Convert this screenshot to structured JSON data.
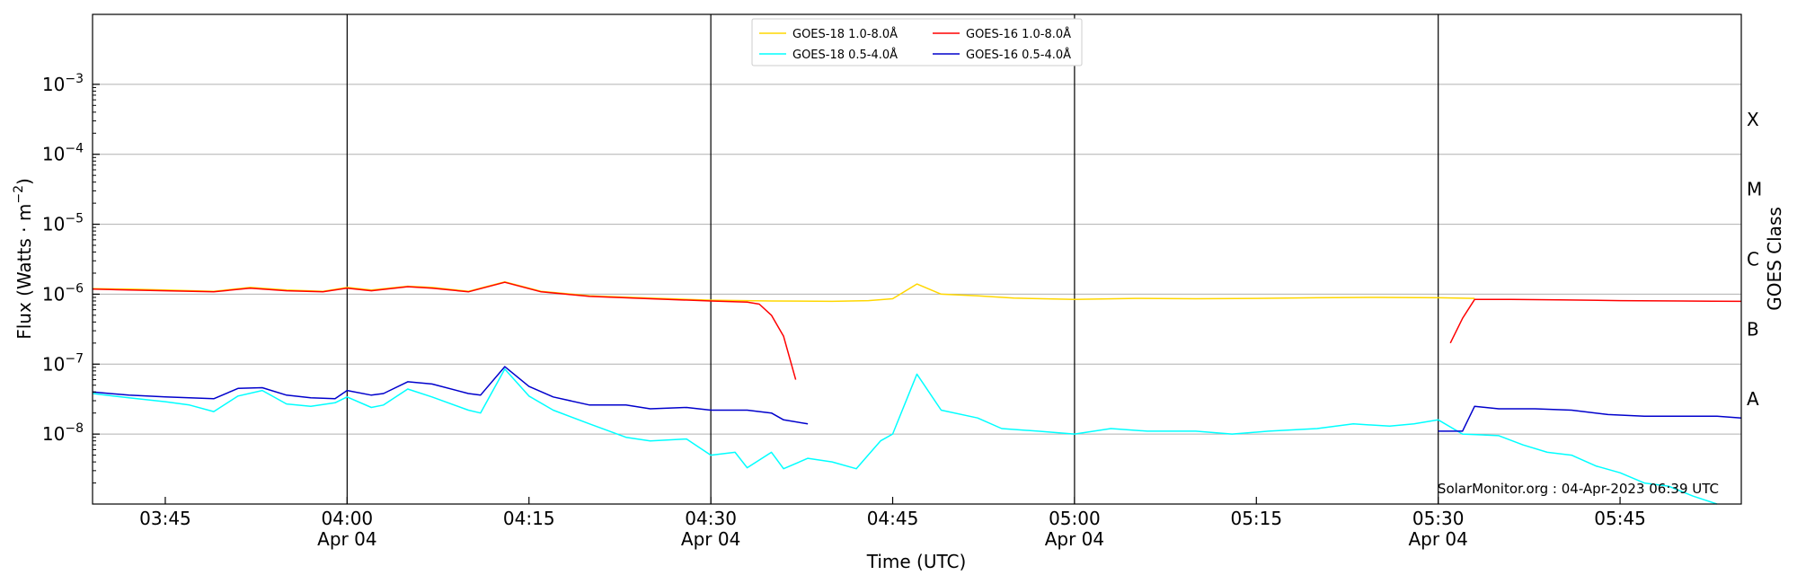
{
  "chart_data": {
    "type": "line",
    "ylabel": "Flux (Watts · m",
    "ylabel_sup": "−2",
    "ylabel_close": ")",
    "xlabel": "Time (UTC)",
    "right_label": "GOES Class",
    "y_scale": "log",
    "ylim": [
      1e-09,
      0.01
    ],
    "xlim_minutes": [
      "03:39",
      "05:55"
    ],
    "x_ticks": [
      {
        "t": "03:45",
        "label": "03:45",
        "sub": ""
      },
      {
        "t": "04:00",
        "label": "04:00",
        "sub": "Apr 04"
      },
      {
        "t": "04:15",
        "label": "04:15",
        "sub": ""
      },
      {
        "t": "04:30",
        "label": "04:30",
        "sub": "Apr 04"
      },
      {
        "t": "04:45",
        "label": "04:45",
        "sub": ""
      },
      {
        "t": "05:00",
        "label": "05:00",
        "sub": "Apr 04"
      },
      {
        "t": "05:15",
        "label": "05:15",
        "sub": ""
      },
      {
        "t": "05:30",
        "label": "05:30",
        "sub": "Apr 04"
      },
      {
        "t": "05:45",
        "label": "05:45",
        "sub": ""
      }
    ],
    "y_ticks": [
      {
        "value": 1e-08,
        "base": "10",
        "exp": "−8"
      },
      {
        "value": 1e-07,
        "base": "10",
        "exp": "−7"
      },
      {
        "value": 1e-06,
        "base": "10",
        "exp": "−6"
      },
      {
        "value": 1e-05,
        "base": "10",
        "exp": "−5"
      },
      {
        "value": 0.0001,
        "base": "10",
        "exp": "−4"
      },
      {
        "value": 0.001,
        "base": "10",
        "exp": "−3"
      }
    ],
    "goes_classes": [
      {
        "label": "A",
        "value": 3.16e-08
      },
      {
        "label": "B",
        "value": 3.16e-07
      },
      {
        "label": "C",
        "value": 3.16e-06
      },
      {
        "label": "M",
        "value": 3.16e-05
      },
      {
        "label": "X",
        "value": 0.000316
      }
    ],
    "day_lines": [
      "04:00",
      "04:30",
      "05:00",
      "05:30"
    ],
    "grid": true,
    "legend_position": "top-center",
    "series": [
      {
        "name": "GOES-18 1.0-8.0Å",
        "color": "#ffd700",
        "segments": [
          [
            [
              "03:39",
              1.2e-06
            ],
            [
              "03:42",
              1.18e-06
            ],
            [
              "03:45",
              1.15e-06
            ],
            [
              "03:49",
              1.1e-06
            ],
            [
              "03:52",
              1.25e-06
            ],
            [
              "03:55",
              1.15e-06
            ],
            [
              "03:58",
              1.1e-06
            ],
            [
              "04:00",
              1.25e-06
            ],
            [
              "04:02",
              1.15e-06
            ],
            [
              "04:05",
              1.3e-06
            ],
            [
              "04:07",
              1.25e-06
            ],
            [
              "04:10",
              1.1e-06
            ],
            [
              "04:13",
              1.5e-06
            ],
            [
              "04:16",
              1.1e-06
            ],
            [
              "04:20",
              9.5e-07
            ],
            [
              "04:25",
              8.8e-07
            ],
            [
              "04:30",
              8.2e-07
            ],
            [
              "04:35",
              8e-07
            ],
            [
              "04:40",
              7.9e-07
            ],
            [
              "04:43",
              8.1e-07
            ],
            [
              "04:45",
              8.6e-07
            ],
            [
              "04:47",
              1.4e-06
            ],
            [
              "04:49",
              1e-06
            ],
            [
              "04:52",
              9.5e-07
            ],
            [
              "04:55",
              8.8e-07
            ],
            [
              "05:00",
              8.4e-07
            ],
            [
              "05:05",
              8.7e-07
            ],
            [
              "05:10",
              8.6e-07
            ],
            [
              "05:15",
              8.7e-07
            ],
            [
              "05:20",
              8.9e-07
            ],
            [
              "05:25",
              9e-07
            ],
            [
              "05:30",
              8.9e-07
            ],
            [
              "05:33",
              8.7e-07
            ]
          ]
        ]
      },
      {
        "name": "GOES-18 0.5-4.0Å",
        "color": "#00ffff",
        "segments": [
          [
            [
              "03:39",
              3.8e-08
            ],
            [
              "03:42",
              3.3e-08
            ],
            [
              "03:45",
              2.9e-08
            ],
            [
              "03:47",
              2.6e-08
            ],
            [
              "03:49",
              2.1e-08
            ],
            [
              "03:51",
              3.5e-08
            ],
            [
              "03:53",
              4.2e-08
            ],
            [
              "03:55",
              2.7e-08
            ],
            [
              "03:57",
              2.5e-08
            ],
            [
              "03:59",
              2.8e-08
            ],
            [
              "04:00",
              3.4e-08
            ],
            [
              "04:02",
              2.4e-08
            ],
            [
              "04:03",
              2.6e-08
            ],
            [
              "04:05",
              4.4e-08
            ],
            [
              "04:07",
              3.4e-08
            ],
            [
              "04:10",
              2.2e-08
            ],
            [
              "04:11",
              2e-08
            ],
            [
              "04:13",
              8.5e-08
            ],
            [
              "04:15",
              3.5e-08
            ],
            [
              "04:17",
              2.2e-08
            ],
            [
              "04:20",
              1.4e-08
            ],
            [
              "04:23",
              9e-09
            ],
            [
              "04:25",
              8e-09
            ],
            [
              "04:28",
              8.5e-09
            ],
            [
              "04:30",
              5e-09
            ],
            [
              "04:32",
              5.5e-09
            ],
            [
              "04:33",
              3.3e-09
            ],
            [
              "04:35",
              5.5e-09
            ],
            [
              "04:36",
              3.2e-09
            ],
            [
              "04:38",
              4.5e-09
            ],
            [
              "04:40",
              4e-09
            ],
            [
              "04:42",
              3.2e-09
            ],
            [
              "04:44",
              8e-09
            ],
            [
              "04:45",
              1e-08
            ],
            [
              "04:47",
              7.2e-08
            ],
            [
              "04:49",
              2.2e-08
            ],
            [
              "04:52",
              1.7e-08
            ],
            [
              "04:54",
              1.2e-08
            ],
            [
              "04:57",
              1.1e-08
            ],
            [
              "05:00",
              1e-08
            ],
            [
              "05:03",
              1.2e-08
            ],
            [
              "05:06",
              1.1e-08
            ],
            [
              "05:10",
              1.1e-08
            ],
            [
              "05:13",
              1e-08
            ],
            [
              "05:16",
              1.1e-08
            ],
            [
              "05:20",
              1.2e-08
            ],
            [
              "05:23",
              1.4e-08
            ],
            [
              "05:26",
              1.3e-08
            ],
            [
              "05:28",
              1.4e-08
            ],
            [
              "05:30",
              1.6e-08
            ],
            [
              "05:32",
              1e-08
            ],
            [
              "05:35",
              9.5e-09
            ],
            [
              "05:37",
              7e-09
            ],
            [
              "05:39",
              5.5e-09
            ],
            [
              "05:41",
              5e-09
            ],
            [
              "05:43",
              3.5e-09
            ],
            [
              "05:45",
              2.8e-09
            ],
            [
              "05:47",
              2e-09
            ],
            [
              "05:49",
              1.8e-09
            ],
            [
              "05:51",
              1.3e-09
            ],
            [
              "05:53",
              1e-09
            ]
          ]
        ]
      },
      {
        "name": "GOES-16 1.0-8.0Å",
        "color": "#ff0000",
        "segments": [
          [
            [
              "03:39",
              1.18e-06
            ],
            [
              "03:42",
              1.15e-06
            ],
            [
              "03:45",
              1.12e-06
            ],
            [
              "03:49",
              1.08e-06
            ],
            [
              "03:52",
              1.22e-06
            ],
            [
              "03:55",
              1.12e-06
            ],
            [
              "03:58",
              1.08e-06
            ],
            [
              "04:00",
              1.22e-06
            ],
            [
              "04:02",
              1.12e-06
            ],
            [
              "04:05",
              1.28e-06
            ],
            [
              "04:07",
              1.22e-06
            ],
            [
              "04:10",
              1.08e-06
            ],
            [
              "04:13",
              1.48e-06
            ],
            [
              "04:16",
              1.08e-06
            ],
            [
              "04:20",
              9.3e-07
            ],
            [
              "04:25",
              8.6e-07
            ],
            [
              "04:30",
              8e-07
            ],
            [
              "04:33",
              7.7e-07
            ],
            [
              "04:34",
              7.2e-07
            ],
            [
              "04:35",
              5e-07
            ],
            [
              "04:36",
              2.5e-07
            ],
            [
              "04:37",
              6e-08
            ]
          ],
          [
            [
              "05:31",
              2e-07
            ],
            [
              "05:32",
              4.5e-07
            ],
            [
              "05:33",
              8.4e-07
            ],
            [
              "05:36",
              8.4e-07
            ],
            [
              "05:40",
              8.3e-07
            ],
            [
              "05:45",
              8.1e-07
            ],
            [
              "05:50",
              8e-07
            ],
            [
              "05:55",
              7.9e-07
            ]
          ]
        ]
      },
      {
        "name": "GOES-16 0.5-4.0Å",
        "color": "#0000cc",
        "segments": [
          [
            [
              "03:39",
              4e-08
            ],
            [
              "03:42",
              3.6e-08
            ],
            [
              "03:45",
              3.4e-08
            ],
            [
              "03:47",
              3.3e-08
            ],
            [
              "03:49",
              3.2e-08
            ],
            [
              "03:51",
              4.5e-08
            ],
            [
              "03:53",
              4.6e-08
            ],
            [
              "03:55",
              3.6e-08
            ],
            [
              "03:57",
              3.3e-08
            ],
            [
              "03:59",
              3.2e-08
            ],
            [
              "04:00",
              4.2e-08
            ],
            [
              "04:02",
              3.6e-08
            ],
            [
              "04:03",
              3.8e-08
            ],
            [
              "04:05",
              5.6e-08
            ],
            [
              "04:07",
              5.2e-08
            ],
            [
              "04:10",
              3.8e-08
            ],
            [
              "04:11",
              3.6e-08
            ],
            [
              "04:13",
              9.2e-08
            ],
            [
              "04:15",
              4.8e-08
            ],
            [
              "04:17",
              3.4e-08
            ],
            [
              "04:20",
              2.6e-08
            ],
            [
              "04:23",
              2.6e-08
            ],
            [
              "04:25",
              2.3e-08
            ],
            [
              "04:28",
              2.4e-08
            ],
            [
              "04:30",
              2.2e-08
            ],
            [
              "04:33",
              2.2e-08
            ],
            [
              "04:35",
              2e-08
            ],
            [
              "04:36",
              1.6e-08
            ],
            [
              "04:38",
              1.4e-08
            ]
          ],
          [
            [
              "05:30",
              1.1e-08
            ],
            [
              "05:32",
              1.1e-08
            ],
            [
              "05:33",
              2.5e-08
            ],
            [
              "05:35",
              2.3e-08
            ],
            [
              "05:38",
              2.3e-08
            ],
            [
              "05:41",
              2.2e-08
            ],
            [
              "05:44",
              1.9e-08
            ],
            [
              "05:47",
              1.8e-08
            ],
            [
              "05:50",
              1.8e-08
            ],
            [
              "05:53",
              1.8e-08
            ],
            [
              "05:55",
              1.7e-08
            ]
          ]
        ]
      }
    ],
    "credit": "SolarMonitor.org : 04-Apr-2023 06:39 UTC"
  }
}
